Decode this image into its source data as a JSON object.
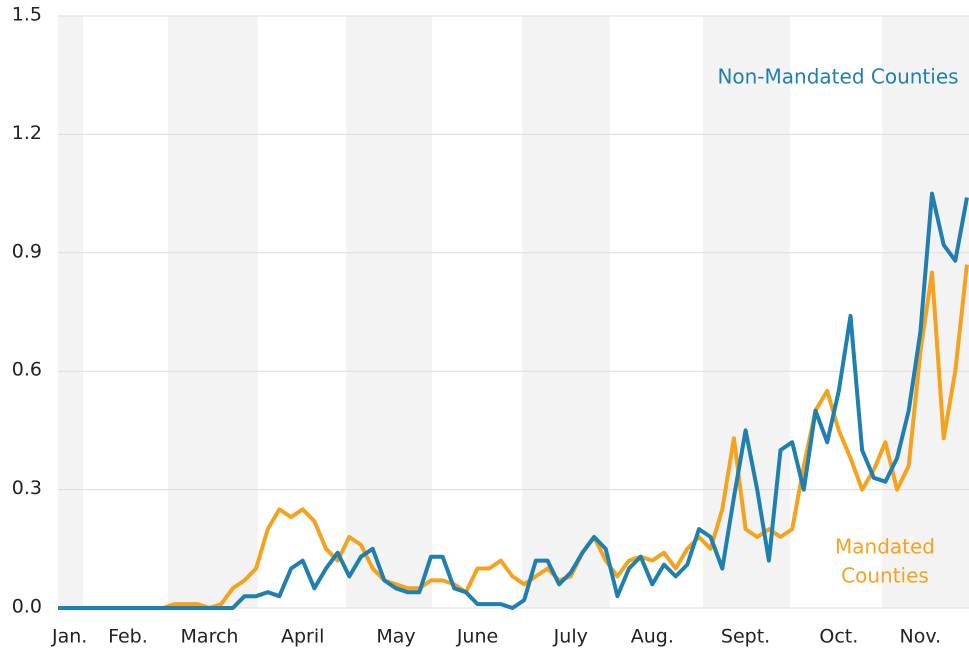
{
  "chart_data": {
    "type": "line",
    "categories": [
      null,
      "Jan.",
      null,
      null,
      null,
      null,
      "Feb.",
      null,
      null,
      null,
      null,
      null,
      null,
      "March",
      null,
      null,
      null,
      null,
      null,
      null,
      null,
      "April",
      null,
      null,
      null,
      null,
      null,
      null,
      null,
      "May",
      null,
      null,
      null,
      null,
      null,
      null,
      "June",
      null,
      null,
      null,
      null,
      null,
      null,
      null,
      "July",
      null,
      null,
      null,
      null,
      null,
      null,
      "Aug.",
      null,
      null,
      null,
      null,
      null,
      null,
      null,
      "Sept.",
      null,
      null,
      null,
      null,
      null,
      null,
      null,
      "Oct.",
      null,
      null,
      null,
      null,
      null,
      null,
      "Nov.",
      null,
      null,
      null,
      null
    ],
    "series": [
      {
        "name": "Non-Mandated Counties",
        "color": "#1f7fb0",
        "values": [
          0,
          0,
          0,
          0,
          0,
          0,
          0,
          0,
          0,
          0,
          0,
          0,
          0,
          0,
          0,
          0,
          0.03,
          0.03,
          0.04,
          0.03,
          0.1,
          0.12,
          0.05,
          0.1,
          0.14,
          0.08,
          0.13,
          0.15,
          0.07,
          0.05,
          0.04,
          0.04,
          0.13,
          0.13,
          0.05,
          0.04,
          0.01,
          0.01,
          0.01,
          0,
          0.02,
          0.12,
          0.12,
          0.06,
          0.09,
          0.14,
          0.18,
          0.15,
          0.03,
          0.1,
          0.13,
          0.06,
          0.11,
          0.08,
          0.11,
          0.2,
          0.18,
          0.1,
          0.28,
          0.45,
          0.3,
          0.12,
          0.4,
          0.42,
          0.3,
          0.5,
          0.42,
          0.55,
          0.74,
          0.4,
          0.33,
          0.32,
          0.38,
          0.5,
          0.7,
          1.05,
          0.92,
          0.88,
          1.04
        ]
      },
      {
        "name": "Mandated Counties",
        "color": "#f5a21e",
        "values": [
          0,
          0,
          0,
          0,
          0,
          0,
          0,
          0,
          0,
          0,
          0.01,
          0.01,
          0.01,
          0,
          0.01,
          0.05,
          0.07,
          0.1,
          0.2,
          0.25,
          0.23,
          0.25,
          0.22,
          0.15,
          0.12,
          0.18,
          0.16,
          0.1,
          0.07,
          0.06,
          0.05,
          0.05,
          0.07,
          0.07,
          0.06,
          0.04,
          0.1,
          0.1,
          0.12,
          0.08,
          0.06,
          0.08,
          0.1,
          0.07,
          0.08,
          0.14,
          0.18,
          0.12,
          0.08,
          0.12,
          0.13,
          0.12,
          0.14,
          0.1,
          0.15,
          0.18,
          0.15,
          0.25,
          0.43,
          0.2,
          0.18,
          0.2,
          0.18,
          0.2,
          0.36,
          0.5,
          0.55,
          0.45,
          0.38,
          0.3,
          0.35,
          0.42,
          0.3,
          0.36,
          0.65,
          0.85,
          0.43,
          0.6,
          0.87
        ]
      }
    ],
    "annotations": [
      "Non-Mandated Counties",
      "Mandated",
      "Counties"
    ],
    "ylim": [
      0,
      1.5
    ],
    "yticks": [
      {
        "value": 0,
        "label": "0.0"
      },
      0.3,
      0.6,
      0.9,
      1.2,
      1.5
    ],
    "grid": true
  }
}
